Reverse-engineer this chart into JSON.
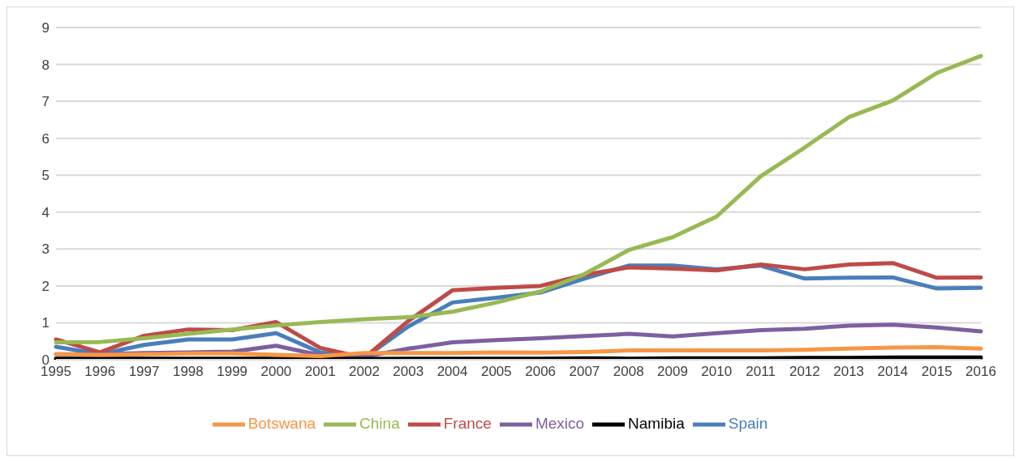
{
  "chart_data": {
    "type": "line",
    "categories": [
      "1995",
      "1996",
      "1997",
      "1998",
      "1999",
      "2000",
      "2001",
      "2002",
      "2003",
      "2004",
      "2005",
      "2006",
      "2007",
      "2008",
      "2009",
      "2010",
      "2011",
      "2012",
      "2013",
      "2014",
      "2015",
      "2016"
    ],
    "ylim": [
      0,
      9
    ],
    "yticks": [
      0,
      1,
      2,
      3,
      4,
      5,
      6,
      7,
      8,
      9
    ],
    "grid": "y",
    "legend": "bottom",
    "marker": "none",
    "line_style": "solid",
    "series": [
      {
        "name": "Spain",
        "color": "#4a7ebb",
        "values": [
          0.35,
          0.15,
          0.4,
          0.55,
          0.55,
          0.72,
          0.2,
          0.05,
          0.9,
          1.55,
          1.68,
          1.82,
          2.2,
          2.55,
          2.55,
          2.45,
          2.55,
          2.2,
          2.22,
          2.23,
          1.93,
          1.95
        ]
      },
      {
        "name": "France",
        "color": "#be4b48",
        "values": [
          0.55,
          0.2,
          0.65,
          0.82,
          0.8,
          1.02,
          0.32,
          0.05,
          1.05,
          1.88,
          1.95,
          2.0,
          2.3,
          2.5,
          2.47,
          2.42,
          2.58,
          2.45,
          2.58,
          2.62,
          2.22,
          2.23
        ]
      },
      {
        "name": "China",
        "color": "#98b954",
        "values": [
          0.47,
          0.48,
          0.58,
          0.7,
          0.82,
          0.93,
          1.02,
          1.1,
          1.15,
          1.3,
          1.55,
          1.85,
          2.32,
          2.97,
          3.32,
          3.88,
          4.97,
          5.75,
          6.57,
          7.02,
          7.77,
          8.23
        ]
      },
      {
        "name": "Mexico",
        "color": "#7d60a0",
        "values": [
          0.15,
          0.15,
          0.18,
          0.2,
          0.22,
          0.38,
          0.12,
          0.08,
          0.3,
          0.47,
          0.53,
          0.58,
          0.64,
          0.7,
          0.63,
          0.72,
          0.8,
          0.84,
          0.92,
          0.95,
          0.87,
          0.77
        ]
      },
      {
        "name": "Namibia",
        "color": "#000000",
        "values": [
          0.03,
          0.03,
          0.03,
          0.03,
          0.03,
          0.03,
          0.02,
          0.02,
          0.03,
          0.03,
          0.03,
          0.03,
          0.04,
          0.03,
          0.04,
          0.04,
          0.04,
          0.05,
          0.05,
          0.06,
          0.06,
          0.06
        ]
      },
      {
        "name": "Botswana",
        "color": "#f79646",
        "values": [
          0.15,
          0.13,
          0.15,
          0.17,
          0.17,
          0.13,
          0.1,
          0.18,
          0.18,
          0.18,
          0.2,
          0.19,
          0.21,
          0.25,
          0.25,
          0.25,
          0.25,
          0.27,
          0.3,
          0.33,
          0.34,
          0.3
        ]
      }
    ]
  }
}
